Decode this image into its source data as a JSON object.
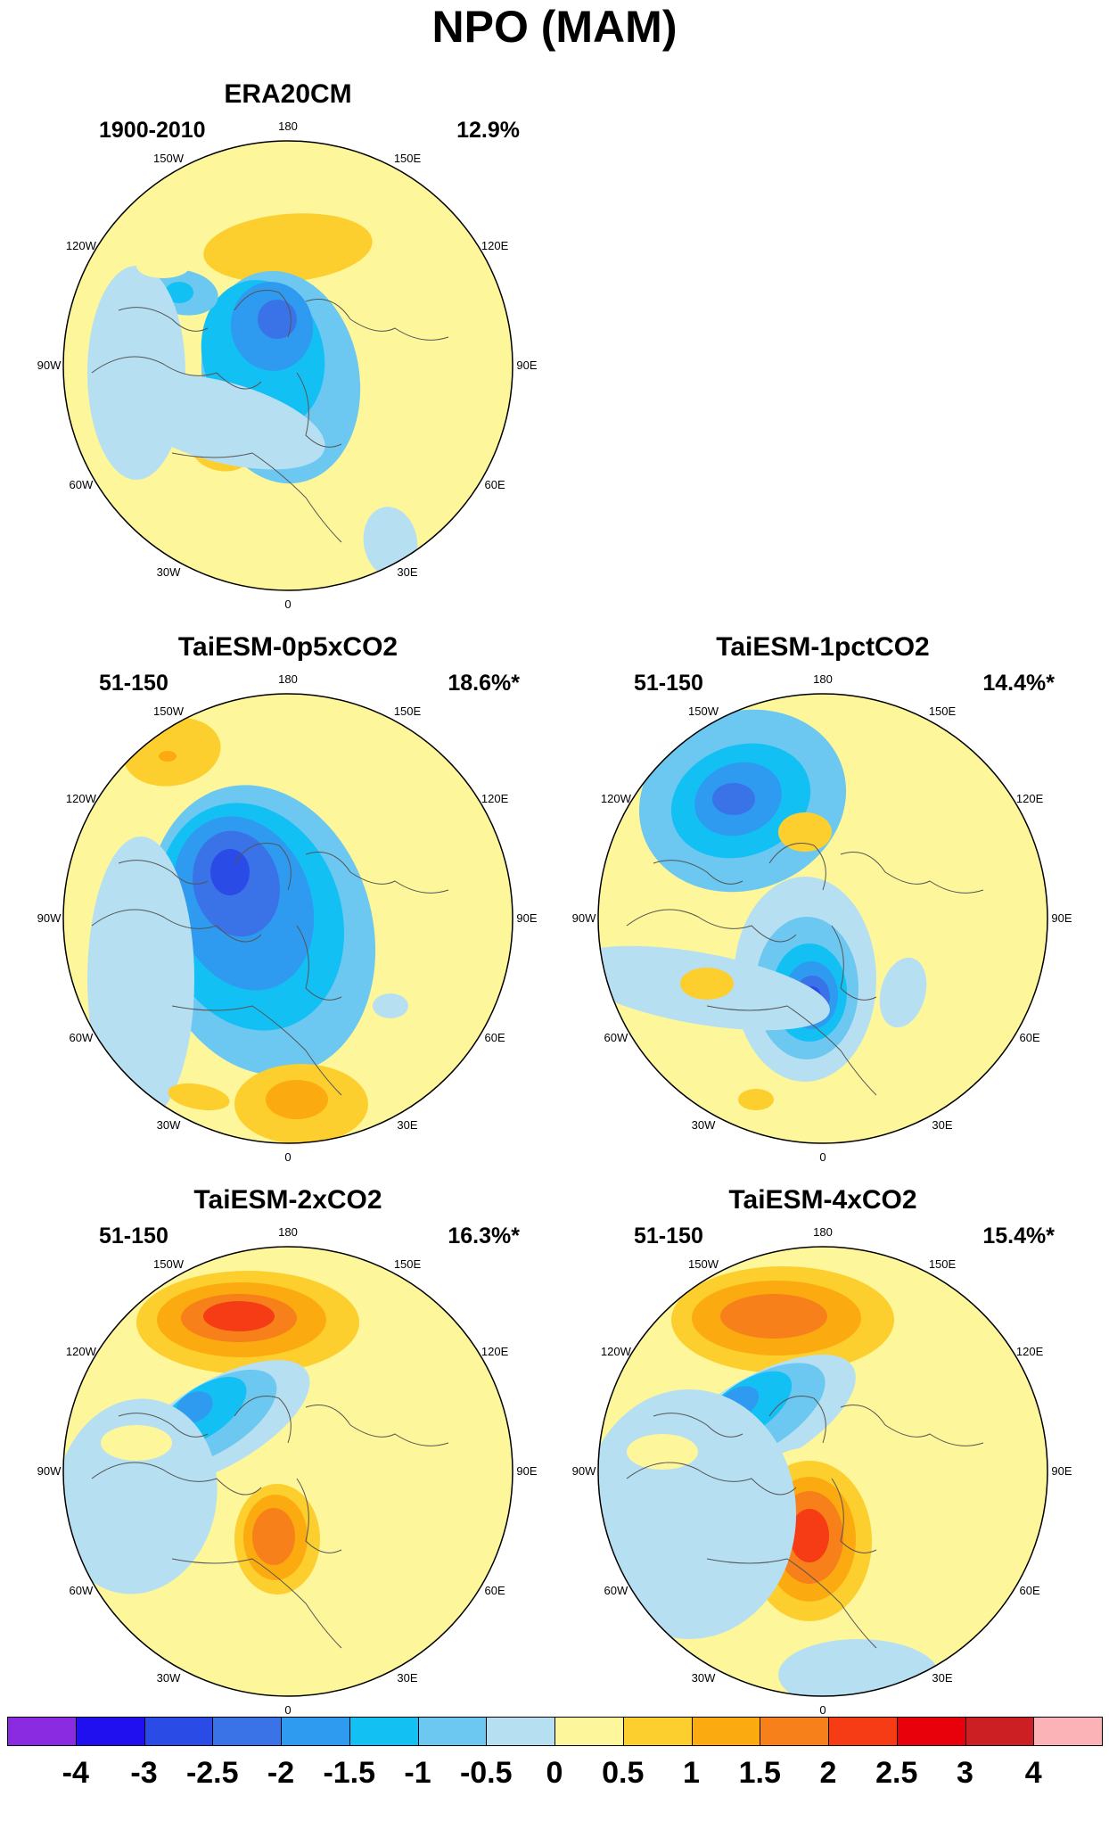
{
  "title": "NPO (MAM)",
  "lon_labels": [
    "180",
    "150E",
    "120E",
    "90E",
    "60E",
    "30E",
    "0",
    "30W",
    "60W",
    "90W",
    "120W",
    "150W"
  ],
  "panels": [
    {
      "name": "ERA20CM",
      "period": "1900-2010",
      "percent": "12.9%"
    },
    {
      "name": "TaiESM-0p5xCO2",
      "period": "51-150",
      "percent": "18.6%*"
    },
    {
      "name": "TaiESM-1pctCO2",
      "period": "51-150",
      "percent": "14.4%*"
    },
    {
      "name": "TaiESM-2xCO2",
      "period": "51-150",
      "percent": "16.3%*"
    },
    {
      "name": "TaiESM-4xCO2",
      "period": "51-150",
      "percent": "15.4%*"
    }
  ],
  "colorbar": {
    "labels": [
      "-4",
      "-3",
      "-2.5",
      "-2",
      "-1.5",
      "-1",
      "-0.5",
      "0",
      "0.5",
      "1",
      "1.5",
      "2",
      "2.5",
      "3",
      "4"
    ],
    "colors": [
      "#8a2be2",
      "#2010f0",
      "#2b4be6",
      "#3a72e8",
      "#2e9af0",
      "#13c0f4",
      "#6cc8f0",
      "#b6e0f2",
      "#fdf69a",
      "#fccf2e",
      "#fbab0f",
      "#f7801a",
      "#f53c14",
      "#e8000b",
      "#cc1f23",
      "#fbb3b8"
    ]
  }
}
